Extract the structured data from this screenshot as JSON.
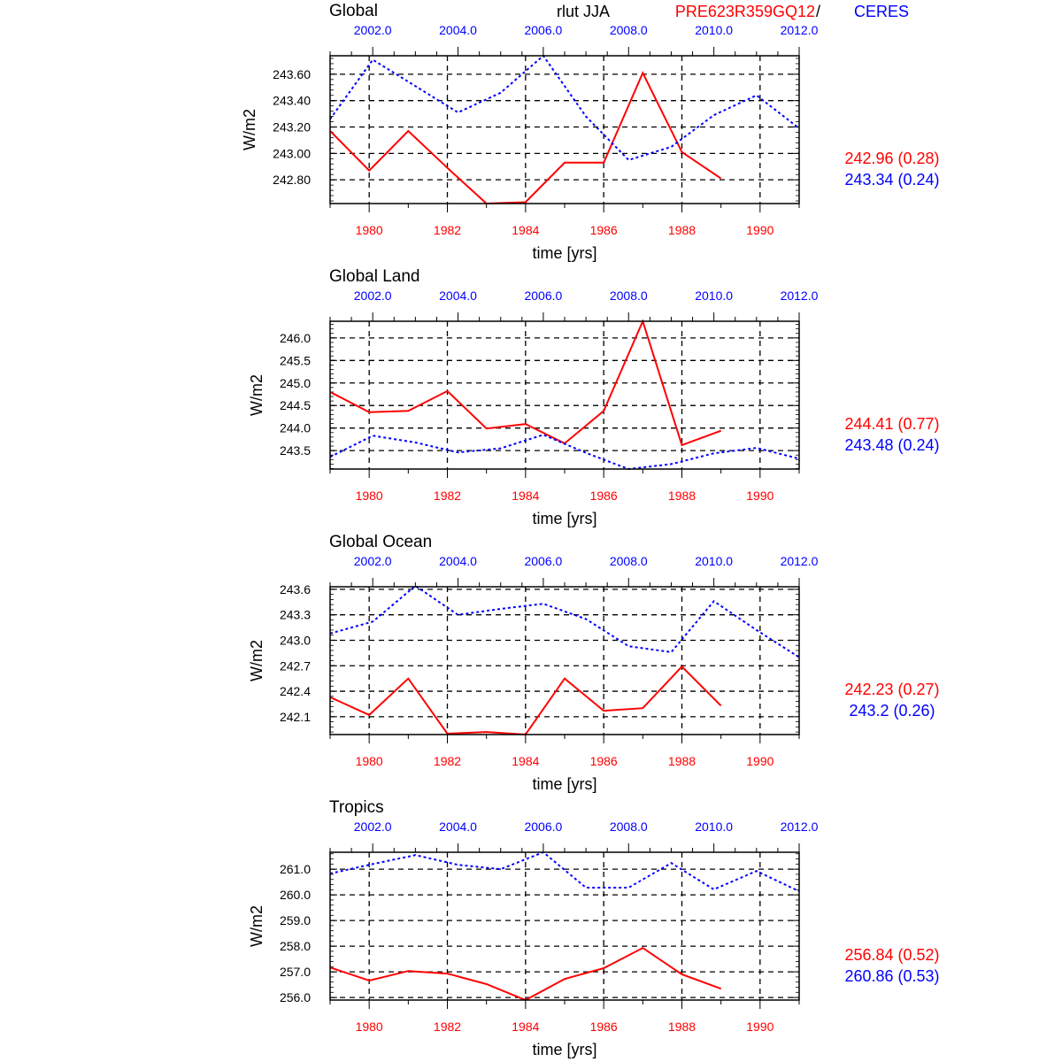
{
  "header": {
    "center_title": "rlut JJA",
    "model_label": "PRE623R359GQ12",
    "separator": "/",
    "obs_label": "CERES"
  },
  "colors": {
    "model": "#ff0000",
    "obs": "#0000ff",
    "axis": "#000000"
  },
  "chart_data": [
    {
      "type": "line",
      "title": "Global",
      "ylabel": "W/m2",
      "xlabel": "time [yrs]",
      "ylim": [
        242.62,
        243.74
      ],
      "yticks": [
        242.8,
        243.0,
        243.2,
        243.4,
        243.6
      ],
      "ytick_labels": [
        "242.80",
        "243.00",
        "243.20",
        "243.40",
        "243.60"
      ],
      "bottom_xlim": [
        1979,
        1991
      ],
      "bottom_xtick_labels": [
        "1980",
        "1982",
        "1984",
        "1986",
        "1988",
        "1990"
      ],
      "top_xlim": [
        2001,
        2012
      ],
      "top_xtick_labels": [
        "2002.0",
        "2004.0",
        "2006.0",
        "2008.0",
        "2010.0",
        "2012.0"
      ],
      "series": [
        {
          "name": "PRE623R359GQ12",
          "axis": "bottom",
          "style": "solid",
          "x": [
            1979,
            1980,
            1981,
            1982,
            1983,
            1984,
            1985,
            1986,
            1987,
            1988,
            1989
          ],
          "values": [
            243.17,
            242.87,
            243.17,
            242.89,
            242.62,
            242.63,
            242.93,
            242.93,
            243.61,
            243.01,
            242.81
          ],
          "stats": "242.96 (0.28)"
        },
        {
          "name": "CERES",
          "axis": "top",
          "style": "dotted",
          "x": [
            2001,
            2002,
            2003,
            2004,
            2005,
            2006,
            2007,
            2008,
            2009,
            2010,
            2011,
            2012
          ],
          "values": [
            243.26,
            243.71,
            243.51,
            243.31,
            243.46,
            243.74,
            243.28,
            242.95,
            243.05,
            243.29,
            243.44,
            243.19
          ],
          "stats": "243.34 (0.24)"
        }
      ]
    },
    {
      "type": "line",
      "title": "Global Land",
      "ylabel": "W/m2",
      "xlabel": "time [yrs]",
      "ylim": [
        243.09,
        246.37
      ],
      "yticks": [
        243.5,
        244.0,
        244.5,
        245.0,
        245.5,
        246.0
      ],
      "ytick_labels": [
        "243.5",
        "244.0",
        "244.5",
        "245.0",
        "245.5",
        "246.0"
      ],
      "bottom_xlim": [
        1979,
        1991
      ],
      "bottom_xtick_labels": [
        "1980",
        "1982",
        "1984",
        "1986",
        "1988",
        "1990"
      ],
      "top_xlim": [
        2001,
        2012
      ],
      "top_xtick_labels": [
        "2002.0",
        "2004.0",
        "2006.0",
        "2008.0",
        "2010.0",
        "2012.0"
      ],
      "series": [
        {
          "name": "PRE623R359GQ12",
          "axis": "bottom",
          "style": "solid",
          "x": [
            1979,
            1980,
            1981,
            1982,
            1983,
            1984,
            1985,
            1986,
            1987,
            1988,
            1989
          ],
          "values": [
            244.8,
            244.35,
            244.38,
            244.82,
            243.99,
            244.09,
            243.66,
            244.38,
            246.37,
            243.62,
            243.94
          ],
          "stats": "244.41 (0.77)"
        },
        {
          "name": "CERES",
          "axis": "top",
          "style": "dotted",
          "x": [
            2001,
            2002,
            2003,
            2004,
            2005,
            2006,
            2007,
            2008,
            2009,
            2010,
            2011,
            2012
          ],
          "values": [
            243.36,
            243.83,
            243.68,
            243.46,
            243.55,
            243.85,
            243.45,
            243.09,
            243.2,
            243.44,
            243.56,
            243.32
          ],
          "stats": "243.48 (0.24)"
        }
      ]
    },
    {
      "type": "line",
      "title": "Global Ocean",
      "ylabel": "W/m2",
      "xlabel": "time [yrs]",
      "ylim": [
        241.89,
        243.63
      ],
      "yticks": [
        242.1,
        242.4,
        242.7,
        243.0,
        243.3,
        243.6
      ],
      "ytick_labels": [
        "242.1",
        "242.4",
        "242.7",
        "243.0",
        "243.3",
        "243.6"
      ],
      "bottom_xlim": [
        1979,
        1991
      ],
      "bottom_xtick_labels": [
        "1980",
        "1982",
        "1984",
        "1986",
        "1988",
        "1990"
      ],
      "top_xlim": [
        2001,
        2012
      ],
      "top_xtick_labels": [
        "2002.0",
        "2004.0",
        "2006.0",
        "2008.0",
        "2010.0",
        "2012.0"
      ],
      "series": [
        {
          "name": "PRE623R359GQ12",
          "axis": "bottom",
          "style": "solid",
          "x": [
            1979,
            1980,
            1981,
            1982,
            1983,
            1984,
            1985,
            1986,
            1987,
            1988,
            1989
          ],
          "values": [
            242.33,
            242.12,
            242.55,
            241.9,
            241.92,
            241.89,
            242.55,
            242.17,
            242.2,
            242.69,
            242.23
          ],
          "stats": "242.23 (0.27)"
        },
        {
          "name": "CERES",
          "axis": "top",
          "style": "dotted",
          "x": [
            2001,
            2002,
            2003,
            2004,
            2005,
            2006,
            2007,
            2008,
            2009,
            2010,
            2011,
            2012
          ],
          "values": [
            243.08,
            243.22,
            243.64,
            243.3,
            243.37,
            243.43,
            243.25,
            242.93,
            242.86,
            243.46,
            243.12,
            242.8
          ],
          "stats": "243.2 (0.26)"
        }
      ]
    },
    {
      "type": "line",
      "title": "Tropics",
      "ylabel": "W/m2",
      "xlabel": "time [yrs]",
      "ylim": [
        255.9,
        261.66
      ],
      "yticks": [
        256.0,
        257.0,
        258.0,
        259.0,
        260.0,
        261.0
      ],
      "ytick_labels": [
        "256.0",
        "257.0",
        "258.0",
        "259.0",
        "260.0",
        "261.0"
      ],
      "bottom_xlim": [
        1979,
        1991
      ],
      "bottom_xtick_labels": [
        "1980",
        "1982",
        "1984",
        "1986",
        "1988",
        "1990"
      ],
      "top_xlim": [
        2001,
        2012
      ],
      "top_xtick_labels": [
        "2002.0",
        "2004.0",
        "2006.0",
        "2008.0",
        "2010.0",
        "2012.0"
      ],
      "series": [
        {
          "name": "PRE623R359GQ12",
          "axis": "bottom",
          "style": "solid",
          "x": [
            1979,
            1980,
            1981,
            1982,
            1983,
            1984,
            1985,
            1986,
            1987,
            1988,
            1989
          ],
          "values": [
            257.17,
            256.66,
            257.03,
            256.93,
            256.52,
            255.9,
            256.72,
            257.14,
            257.93,
            256.9,
            256.34
          ],
          "stats": "256.84 (0.52)"
        },
        {
          "name": "CERES",
          "axis": "top",
          "style": "dotted",
          "x": [
            2001,
            2002,
            2003,
            2004,
            2005,
            2006,
            2007,
            2008,
            2009,
            2010,
            2011,
            2012
          ],
          "values": [
            260.83,
            261.2,
            261.55,
            261.17,
            261.0,
            261.66,
            260.28,
            260.28,
            261.24,
            260.21,
            260.93,
            260.14
          ],
          "stats": "260.86 (0.53)"
        }
      ]
    }
  ]
}
